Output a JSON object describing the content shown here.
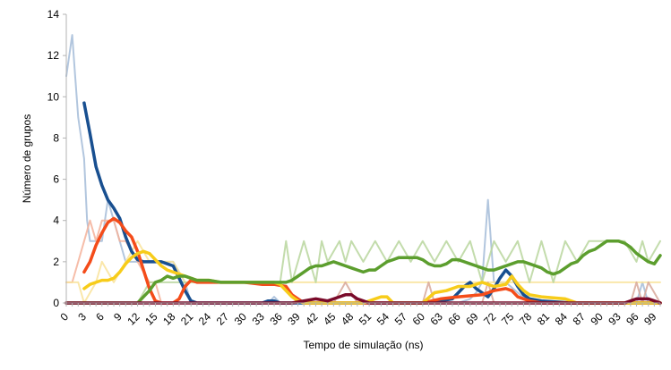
{
  "chart_data": {
    "type": "line",
    "xlabel": "Tempo de simulação (ns)",
    "ylabel": "Número de grupos",
    "xlim": [
      0,
      100
    ],
    "ylim": [
      0,
      14
    ],
    "yticks": [
      0,
      2,
      4,
      6,
      8,
      10,
      12,
      14
    ],
    "xticks": [
      0,
      3,
      6,
      9,
      12,
      15,
      18,
      21,
      24,
      27,
      30,
      33,
      36,
      39,
      42,
      45,
      48,
      51,
      54,
      57,
      60,
      63,
      66,
      69,
      72,
      75,
      78,
      81,
      84,
      87,
      90,
      93,
      96,
      99
    ],
    "grid": false,
    "legend": "none",
    "series": [
      {
        "style": "raw",
        "color": "#a5bcd8",
        "x": [
          0,
          0.5,
          1,
          1.5,
          2,
          2.5,
          3,
          3.5,
          4,
          6,
          7,
          8,
          10,
          12,
          14,
          16,
          18,
          20,
          21,
          30,
          34,
          35,
          36,
          37,
          40,
          50,
          60,
          64,
          66,
          68,
          69,
          70,
          70.5,
          71,
          71.5,
          72,
          74,
          76,
          78,
          80,
          85,
          90,
          96,
          97,
          98,
          100
        ],
        "y": [
          11,
          12,
          13,
          11,
          9,
          8,
          7,
          4,
          3,
          3,
          5,
          4,
          2,
          2,
          2,
          2,
          2,
          1,
          0,
          0,
          0,
          0.3,
          0,
          0,
          0,
          0,
          0,
          0,
          0,
          0.2,
          0.5,
          1,
          3,
          5,
          3,
          1,
          1,
          0.5,
          0,
          0,
          0,
          0,
          0,
          1,
          0,
          0
        ]
      },
      {
        "style": "raw",
        "color": "#f5b29a",
        "x": [
          0,
          1,
          2,
          3,
          4,
          5,
          6,
          7,
          8,
          9,
          10,
          12,
          14,
          15,
          16,
          18,
          20,
          22,
          100
        ],
        "y": [
          1,
          1,
          2,
          3,
          4,
          3,
          4,
          4,
          4,
          3,
          3,
          2,
          1,
          1,
          0,
          0,
          0,
          0,
          0
        ]
      },
      {
        "style": "raw",
        "color": "#f9e39a",
        "x": [
          0,
          2,
          3,
          5,
          6,
          8,
          10,
          12,
          14,
          16,
          18,
          20,
          22,
          30,
          100
        ],
        "y": [
          1,
          1,
          0,
          1,
          2,
          1,
          2,
          3,
          2,
          2,
          2,
          1,
          1,
          1,
          1
        ]
      },
      {
        "style": "raw",
        "color": "#b9d69e",
        "x": [
          0,
          12,
          14,
          16,
          18,
          20,
          25,
          30,
          33,
          36,
          37,
          38,
          40,
          42,
          43,
          44,
          46,
          47,
          48,
          50,
          52,
          54,
          56,
          58,
          60,
          62,
          64,
          66,
          68,
          70,
          72,
          74,
          76,
          78,
          80,
          82,
          84,
          86,
          88,
          90,
          92,
          94,
          96,
          97,
          98,
          100
        ],
        "y": [
          0,
          0,
          1,
          1,
          1,
          1,
          1,
          1,
          1,
          1,
          3,
          1,
          3,
          1,
          3,
          2,
          3,
          2,
          3,
          2,
          3,
          2,
          3,
          2,
          3,
          2,
          3,
          2,
          3,
          1,
          3,
          2,
          3,
          1,
          3,
          1,
          3,
          2,
          3,
          3,
          3,
          3,
          2,
          3,
          2,
          3
        ]
      },
      {
        "style": "raw",
        "color": "#d8a89a",
        "x": [
          0,
          20,
          40,
          45,
          46,
          47,
          48,
          49,
          50,
          55,
          60,
          61,
          62,
          70,
          71,
          72,
          80,
          90,
          95,
          96,
          97,
          98,
          100
        ],
        "y": [
          0,
          0,
          0,
          0,
          0.5,
          1,
          0.5,
          0,
          0,
          0,
          0,
          1,
          0,
          0,
          1,
          0,
          0,
          0,
          0,
          1,
          0,
          1,
          0
        ]
      },
      {
        "style": "smooth",
        "color": "#184f90",
        "x": [
          3,
          4,
          5,
          6,
          7,
          8,
          9,
          10,
          11,
          12,
          13,
          14,
          15,
          16,
          17,
          18,
          19,
          20,
          21,
          22,
          25,
          30,
          33,
          34,
          35,
          36,
          40,
          50,
          60,
          63,
          65,
          66,
          67,
          68,
          69,
          70,
          71,
          72,
          73,
          74,
          75,
          76,
          77,
          78,
          80,
          85,
          90,
          100
        ],
        "y": [
          9.7,
          8.2,
          6.6,
          5.7,
          5,
          4.6,
          4.1,
          3.2,
          2.5,
          2.1,
          2,
          2,
          2,
          2,
          1.9,
          1.8,
          1.2,
          0.6,
          0.1,
          0,
          0,
          0,
          0,
          0.1,
          0.1,
          0,
          0,
          0,
          0,
          0.1,
          0.2,
          0.5,
          0.8,
          1,
          0.7,
          0.5,
          0.3,
          0.7,
          1.2,
          1.6,
          1.3,
          0.8,
          0.4,
          0.2,
          0.1,
          0,
          0,
          0
        ]
      },
      {
        "style": "smooth",
        "color": "#f44c1a",
        "x": [
          3,
          4,
          5,
          6,
          7,
          8,
          9,
          10,
          11,
          12,
          13,
          14,
          15,
          16,
          17,
          18,
          19,
          20,
          21,
          22,
          30,
          33,
          35,
          37,
          38,
          40,
          50,
          60,
          63,
          66,
          70,
          72,
          74,
          75,
          76,
          78,
          80,
          100
        ],
        "y": [
          1.5,
          2,
          2.8,
          3.4,
          3.9,
          4.1,
          3.9,
          3.5,
          3.2,
          2.5,
          1.6,
          0.7,
          0.1,
          0,
          0,
          0,
          0.2,
          0.8,
          1.1,
          1,
          1,
          0.9,
          0.9,
          0.8,
          0.4,
          0,
          0,
          0,
          0.2,
          0.3,
          0.4,
          0.6,
          0.7,
          0.6,
          0.3,
          0.1,
          0,
          0
        ]
      },
      {
        "style": "smooth",
        "color": "#f7cc1a",
        "x": [
          3,
          4,
          5,
          6,
          7,
          8,
          9,
          10,
          11,
          12,
          13,
          14,
          15,
          16,
          17,
          18,
          19,
          20,
          21,
          22,
          24,
          26,
          28,
          30,
          33,
          35,
          36,
          37,
          38,
          39,
          40,
          50,
          52,
          53,
          54,
          55,
          60,
          62,
          64,
          66,
          68,
          70,
          72,
          74,
          75,
          76,
          77,
          78,
          80,
          84,
          86,
          100
        ],
        "y": [
          0.7,
          0.9,
          1,
          1.1,
          1.1,
          1.2,
          1.5,
          1.9,
          2.2,
          2.4,
          2.5,
          2.4,
          2.1,
          1.8,
          1.6,
          1.5,
          1.4,
          1.3,
          1.2,
          1.1,
          1.1,
          1,
          1,
          1,
          1,
          1,
          0.9,
          0.6,
          0.3,
          0.1,
          0,
          0,
          0.2,
          0.3,
          0.3,
          0,
          0,
          0.5,
          0.6,
          0.8,
          0.8,
          1,
          0.8,
          0.9,
          1.3,
          0.9,
          0.6,
          0.4,
          0.3,
          0.2,
          0,
          0
        ]
      },
      {
        "style": "smooth",
        "color": "#5c9e2e",
        "x": [
          0,
          12,
          13,
          14,
          15,
          16,
          17,
          18,
          19,
          20,
          21,
          22,
          24,
          26,
          28,
          30,
          33,
          34,
          35,
          36,
          37,
          38,
          39,
          40,
          41,
          42,
          43,
          44,
          45,
          46,
          47,
          48,
          49,
          50,
          51,
          52,
          53,
          54,
          55,
          56,
          57,
          58,
          59,
          60,
          61,
          62,
          63,
          64,
          65,
          66,
          67,
          68,
          69,
          70,
          71,
          72,
          73,
          74,
          75,
          76,
          77,
          78,
          79,
          80,
          81,
          82,
          83,
          84,
          85,
          86,
          87,
          88,
          89,
          90,
          91,
          92,
          93,
          94,
          95,
          96,
          97,
          98,
          99,
          100
        ],
        "y": [
          0,
          0,
          0.3,
          0.6,
          1,
          1.1,
          1.3,
          1.2,
          1.3,
          1.3,
          1.2,
          1.1,
          1.1,
          1,
          1,
          1,
          1,
          1,
          1,
          1,
          1,
          1.1,
          1.3,
          1.5,
          1.7,
          1.8,
          1.8,
          1.9,
          2,
          1.9,
          1.8,
          1.7,
          1.6,
          1.5,
          1.6,
          1.6,
          1.8,
          2,
          2.1,
          2.2,
          2.2,
          2.2,
          2.2,
          2.1,
          1.9,
          1.8,
          1.8,
          1.9,
          2.1,
          2.1,
          2,
          1.9,
          1.8,
          1.7,
          1.6,
          1.6,
          1.7,
          1.8,
          1.9,
          2,
          2,
          1.9,
          1.8,
          1.7,
          1.5,
          1.4,
          1.5,
          1.7,
          1.9,
          2,
          2.3,
          2.5,
          2.6,
          2.8,
          3,
          3,
          3,
          2.9,
          2.7,
          2.4,
          2.2,
          2,
          1.9,
          2.3
        ]
      },
      {
        "style": "smooth",
        "color": "#7a0a2a",
        "x": [
          0,
          38,
          40,
          42,
          44,
          45,
          46,
          47,
          48,
          49,
          50,
          51,
          52,
          60,
          70,
          80,
          90,
          94,
          95,
          96,
          97,
          98,
          99,
          100
        ],
        "y": [
          0,
          0,
          0.1,
          0.2,
          0.1,
          0.2,
          0.3,
          0.4,
          0.4,
          0.2,
          0.1,
          0,
          0,
          0,
          0,
          0,
          0,
          0,
          0.1,
          0.2,
          0.2,
          0.2,
          0.1,
          0
        ]
      }
    ]
  }
}
